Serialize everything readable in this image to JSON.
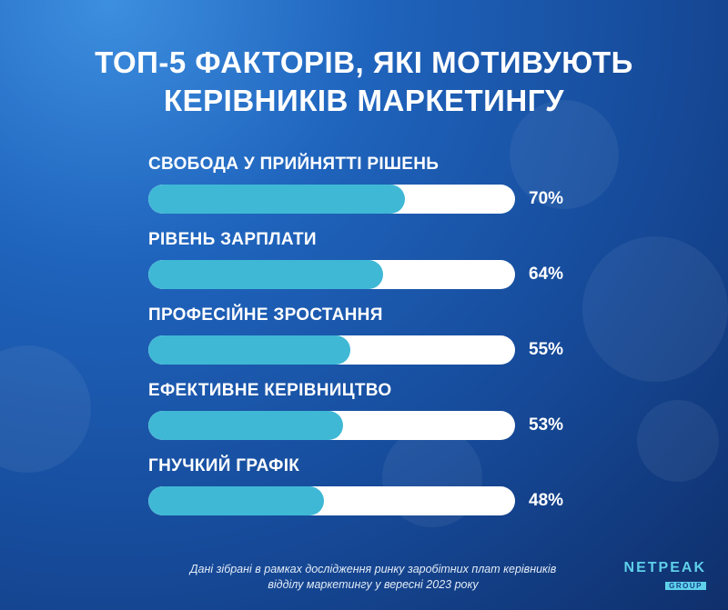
{
  "title_line1": "ТОП-5 ФАКТОРІВ, ЯКІ МОТИВУЮТЬ",
  "title_line2": "КЕРІВНИКІВ МАРКЕТИНГУ",
  "chart_data": {
    "type": "bar",
    "orientation": "horizontal",
    "categories": [
      "СВОБОДА У ПРИЙНЯТТІ РІШЕНЬ",
      "РІВЕНЬ ЗАРПЛАТИ",
      "ПРОФЕСІЙНЕ ЗРОСТАННЯ",
      "ЕФЕКТИВНЕ КЕРІВНИЦТВО",
      "ГНУЧКИЙ ГРАФІК"
    ],
    "values": [
      70,
      64,
      55,
      53,
      48
    ],
    "value_labels": [
      "70%",
      "64%",
      "55%",
      "53%",
      "48%"
    ],
    "xlim": [
      0,
      100
    ],
    "grid": false,
    "bar_color": "#3fb8d6",
    "track_color": "#ffffff"
  },
  "footnote_line1": "Дані зібрані в рамках дослідження ринку заробітних плат керівників",
  "footnote_line2": "відділу маркетингу у вересні 2023 року",
  "logo": {
    "main": "NETPEAK",
    "sub": "GROUP"
  },
  "colors": {
    "background": "#1f64bd",
    "accent": "#5fd0ea"
  }
}
